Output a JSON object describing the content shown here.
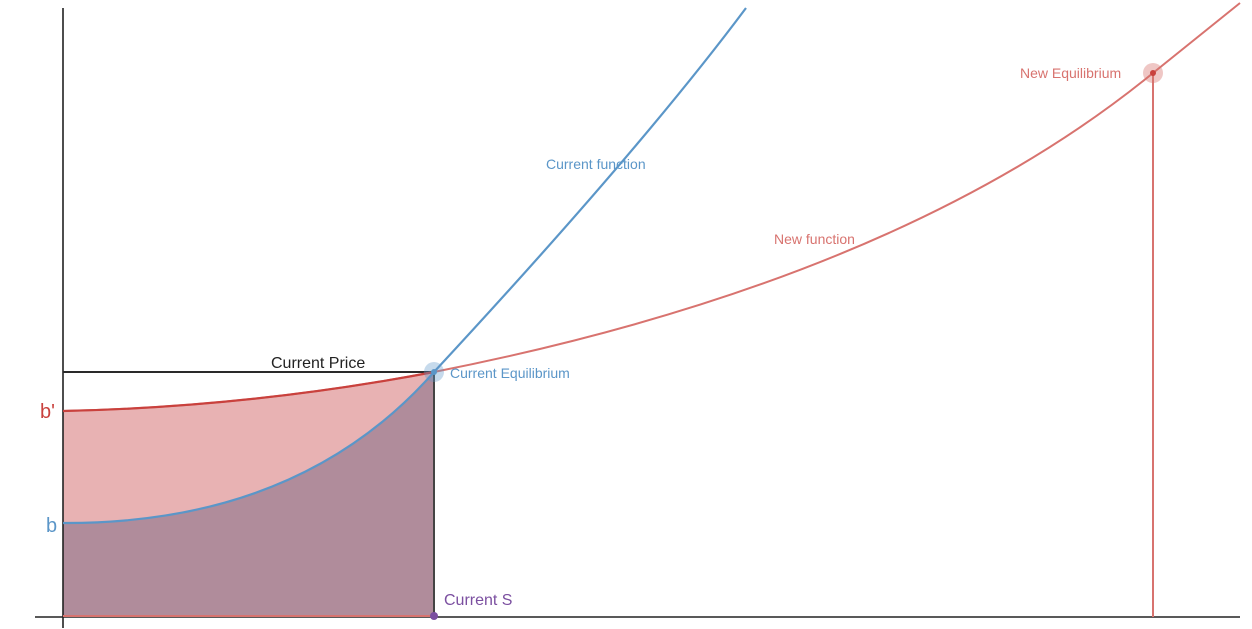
{
  "labels": {
    "current_function": "Current function",
    "new_function": "New function",
    "current_equilibrium": "Current Equilibrium",
    "new_equilibrium": "New Equilibrium",
    "current_price": "Current Price",
    "current_s": "Current S",
    "b": "b",
    "b_prime": "b'"
  },
  "colors": {
    "current": "#5b96c8",
    "new": "#d8736f",
    "current_price_line": "#2a2a2a",
    "purple": "#7b4fa0",
    "axis": "#222222"
  }
}
